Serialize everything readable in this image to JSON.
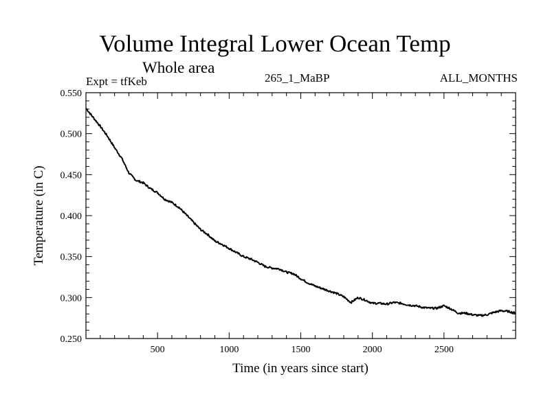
{
  "header": {
    "title": "Volume Integral Lower Ocean Temp",
    "subtitle": "Whole area",
    "expt": "Expt = tfKeb",
    "run_id": "265_1_MaBP",
    "months": "ALL_MONTHS"
  },
  "chart_data": {
    "type": "line",
    "title": "Volume Integral Lower Ocean Temp",
    "subtitle": "Whole area",
    "xlabel": "Time (in years since start)",
    "ylabel": "Temperature (in C)",
    "xlim": [
      0,
      3000
    ],
    "ylim": [
      0.25,
      0.55
    ],
    "xticks": [
      500,
      1000,
      1500,
      2000,
      2500
    ],
    "xtick_labels": [
      "500",
      "1000",
      "1500",
      "2000",
      "2500"
    ],
    "yticks": [
      0.25,
      0.3,
      0.35,
      0.4,
      0.45,
      0.5,
      0.55
    ],
    "ytick_labels": [
      "0.250",
      "0.300",
      "0.350",
      "0.400",
      "0.450",
      "0.500",
      "0.550"
    ],
    "grid": false,
    "line_color": "#000000",
    "series": [
      {
        "x": [
          0,
          50,
          100,
          150,
          200,
          250,
          300,
          350,
          400,
          450,
          500,
          550,
          600,
          650,
          700,
          750,
          800,
          850,
          900,
          950,
          1000,
          1050,
          1100,
          1150,
          1200,
          1250,
          1300,
          1350,
          1400,
          1450,
          1500,
          1550,
          1600,
          1650,
          1700,
          1750,
          1800,
          1850,
          1900,
          1950,
          2000,
          2050,
          2100,
          2150,
          2200,
          2250,
          2300,
          2350,
          2400,
          2450,
          2500,
          2550,
          2600,
          2650,
          2700,
          2750,
          2800,
          2850,
          2900,
          2950,
          3000
        ],
        "values": [
          0.531,
          0.52,
          0.509,
          0.497,
          0.483,
          0.47,
          0.452,
          0.443,
          0.44,
          0.433,
          0.428,
          0.42,
          0.416,
          0.41,
          0.401,
          0.392,
          0.383,
          0.377,
          0.369,
          0.365,
          0.36,
          0.355,
          0.35,
          0.347,
          0.343,
          0.338,
          0.336,
          0.335,
          0.331,
          0.329,
          0.323,
          0.318,
          0.314,
          0.311,
          0.308,
          0.305,
          0.301,
          0.294,
          0.3,
          0.297,
          0.293,
          0.293,
          0.292,
          0.294,
          0.293,
          0.291,
          0.29,
          0.288,
          0.287,
          0.287,
          0.29,
          0.286,
          0.281,
          0.281,
          0.279,
          0.278,
          0.279,
          0.282,
          0.284,
          0.283,
          0.281
        ]
      }
    ]
  }
}
